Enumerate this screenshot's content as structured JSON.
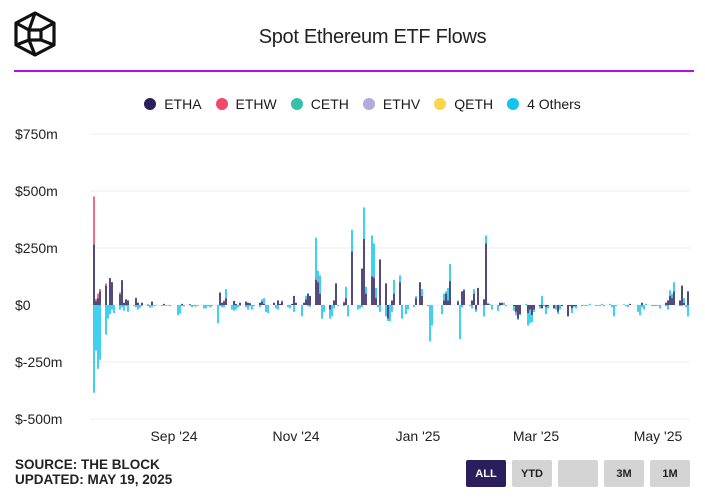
{
  "header": {
    "title": "Spot Ethereum ETF Flows",
    "logo_name": "The Block"
  },
  "legend": [
    {
      "label": "ETHA",
      "color": "#2a1f5c"
    },
    {
      "label": "ETHW",
      "color": "#f0476a"
    },
    {
      "label": "CETH",
      "color": "#36bfad"
    },
    {
      "label": "ETHV",
      "color": "#b4a9e0"
    },
    {
      "label": "QETH",
      "color": "#fbd54b"
    },
    {
      "label": "4 Others",
      "color": "#12c4ec"
    }
  ],
  "footer": {
    "source": "SOURCE: THE BLOCK",
    "updated": "UPDATED: MAY 19, 2025"
  },
  "range_buttons": [
    {
      "label": "ALL",
      "active": true
    },
    {
      "label": "YTD",
      "active": false
    },
    {
      "label": "",
      "active": false
    },
    {
      "label": "3M",
      "active": false
    },
    {
      "label": "1M",
      "active": false
    }
  ],
  "chart_data": {
    "type": "bar",
    "stacked": true,
    "title": "Spot Ethereum ETF Flows",
    "ylim": [
      -500,
      750
    ],
    "y_ticks": [
      {
        "value": 750,
        "label": "$750m"
      },
      {
        "value": 500,
        "label": "$500m"
      },
      {
        "value": 250,
        "label": "$250m"
      },
      {
        "value": 0,
        "label": "$0"
      },
      {
        "value": -250,
        "label": "$-250m"
      },
      {
        "value": -500,
        "label": "$-500m"
      }
    ],
    "x_ticks": [
      {
        "date": "2024-09-01",
        "label": "Sep '24"
      },
      {
        "date": "2024-11-01",
        "label": "Nov '24"
      },
      {
        "date": "2025-01-01",
        "label": "Jan '25"
      },
      {
        "date": "2025-03-01",
        "label": "Mar '25"
      },
      {
        "date": "2025-05-01",
        "label": "May '25"
      }
    ],
    "xlim": [
      "2024-07-21",
      "2025-05-17"
    ],
    "grid": true,
    "legend_position": "top",
    "units": "USD millions",
    "columns": [
      "date",
      "ETHA",
      "ETHW",
      "4 Others"
    ],
    "rows": [
      [
        "2024-07-23",
        266,
        210,
        -385
      ],
      [
        "2024-07-24",
        17,
        10,
        -200
      ],
      [
        "2024-07-25",
        30,
        20,
        -280
      ],
      [
        "2024-07-26",
        60,
        10,
        -240
      ],
      [
        "2024-07-29",
        85,
        10,
        -130
      ],
      [
        "2024-07-30",
        0,
        0,
        -60
      ],
      [
        "2024-07-31",
        118,
        0,
        -40
      ],
      [
        "2024-08-01",
        100,
        0,
        -20
      ],
      [
        "2024-08-02",
        0,
        0,
        -35
      ],
      [
        "2024-08-05",
        47,
        8,
        -20
      ],
      [
        "2024-08-06",
        109,
        0,
        -10
      ],
      [
        "2024-08-07",
        10,
        0,
        -25
      ],
      [
        "2024-08-08",
        25,
        0,
        -5
      ],
      [
        "2024-08-09",
        20,
        0,
        -30
      ],
      [
        "2024-08-12",
        0,
        0,
        -5
      ],
      [
        "2024-08-13",
        30,
        3,
        -10
      ],
      [
        "2024-08-14",
        10,
        0,
        -20
      ],
      [
        "2024-08-15",
        0,
        0,
        -12
      ],
      [
        "2024-08-16",
        10,
        0,
        -5
      ],
      [
        "2024-08-19",
        2,
        0,
        -5
      ],
      [
        "2024-08-20",
        0,
        0,
        -12
      ],
      [
        "2024-08-21",
        15,
        0,
        -8
      ],
      [
        "2024-08-22",
        0,
        0,
        -4
      ],
      [
        "2024-08-23",
        0,
        0,
        -2
      ],
      [
        "2024-08-26",
        0,
        0,
        -5
      ],
      [
        "2024-08-27",
        5,
        0,
        -3
      ],
      [
        "2024-08-28",
        0,
        0,
        -3
      ],
      [
        "2024-08-29",
        0,
        0,
        -2
      ],
      [
        "2024-08-30",
        0,
        0,
        -5
      ],
      [
        "2024-09-03",
        0,
        0,
        -45
      ],
      [
        "2024-09-04",
        0,
        0,
        -38
      ],
      [
        "2024-09-05",
        5,
        0,
        -5
      ],
      [
        "2024-09-06",
        0,
        0,
        -6
      ],
      [
        "2024-09-09",
        3,
        0,
        -3
      ],
      [
        "2024-09-10",
        0,
        0,
        -10
      ],
      [
        "2024-09-11",
        0,
        0,
        -5
      ],
      [
        "2024-09-12",
        0,
        0,
        -7
      ],
      [
        "2024-09-13",
        0,
        0,
        -3
      ],
      [
        "2024-09-16",
        0,
        0,
        -15
      ],
      [
        "2024-09-17",
        0,
        0,
        -15
      ],
      [
        "2024-09-18",
        0,
        0,
        -5
      ],
      [
        "2024-09-19",
        0,
        0,
        -10
      ],
      [
        "2024-09-20",
        0,
        0,
        -5
      ],
      [
        "2024-09-23",
        0,
        0,
        -80
      ],
      [
        "2024-09-24",
        55,
        0,
        -5
      ],
      [
        "2024-09-25",
        10,
        0,
        -10
      ],
      [
        "2024-09-26",
        15,
        5,
        -10
      ],
      [
        "2024-09-27",
        30,
        0,
        40
      ],
      [
        "2024-09-30",
        0,
        0,
        -20
      ],
      [
        "2024-10-01",
        18,
        0,
        -25
      ],
      [
        "2024-10-02",
        5,
        0,
        -20
      ],
      [
        "2024-10-03",
        0,
        0,
        -10
      ],
      [
        "2024-10-04",
        10,
        0,
        -5
      ],
      [
        "2024-10-07",
        15,
        0,
        -10
      ],
      [
        "2024-10-08",
        10,
        0,
        -20
      ],
      [
        "2024-10-09",
        8,
        0,
        -6
      ],
      [
        "2024-10-10",
        0,
        0,
        -20
      ],
      [
        "2024-10-11",
        0,
        0,
        -5
      ],
      [
        "2024-10-14",
        10,
        0,
        -10
      ],
      [
        "2024-10-15",
        15,
        0,
        10
      ],
      [
        "2024-10-16",
        5,
        0,
        25
      ],
      [
        "2024-10-17",
        0,
        0,
        -30
      ],
      [
        "2024-10-18",
        0,
        0,
        -35
      ],
      [
        "2024-10-21",
        10,
        0,
        0
      ],
      [
        "2024-10-22",
        0,
        0,
        -15
      ],
      [
        "2024-10-23",
        20,
        0,
        -20
      ],
      [
        "2024-10-24",
        5,
        0,
        0
      ],
      [
        "2024-10-25",
        15,
        0,
        5
      ],
      [
        "2024-10-28",
        0,
        0,
        -10
      ],
      [
        "2024-10-29",
        0,
        0,
        -15
      ],
      [
        "2024-10-30",
        5,
        0,
        0
      ],
      [
        "2024-10-31",
        40,
        0,
        -30
      ],
      [
        "2024-11-01",
        10,
        0,
        0
      ],
      [
        "2024-11-04",
        0,
        0,
        -50
      ],
      [
        "2024-11-05",
        10,
        0,
        0
      ],
      [
        "2024-11-06",
        25,
        0,
        15
      ],
      [
        "2024-11-07",
        50,
        0,
        -5
      ],
      [
        "2024-11-08",
        40,
        0,
        -10
      ],
      [
        "2024-11-11",
        110,
        10,
        175
      ],
      [
        "2024-11-12",
        100,
        5,
        45
      ],
      [
        "2024-11-13",
        50,
        0,
        80
      ],
      [
        "2024-11-14",
        0,
        0,
        -60
      ],
      [
        "2024-11-15",
        0,
        0,
        -30
      ],
      [
        "2024-11-18",
        -20,
        0,
        -40
      ],
      [
        "2024-11-19",
        0,
        0,
        -50
      ],
      [
        "2024-11-20",
        20,
        0,
        -15
      ],
      [
        "2024-11-21",
        95,
        0,
        0
      ],
      [
        "2024-11-22",
        0,
        0,
        -5
      ],
      [
        "2024-11-25",
        10,
        5,
        -5
      ],
      [
        "2024-11-26",
        30,
        0,
        50
      ],
      [
        "2024-11-27",
        0,
        0,
        -50
      ],
      [
        "2024-11-29",
        235,
        0,
        95
      ],
      [
        "2024-12-02",
        0,
        0,
        -20
      ],
      [
        "2024-12-03",
        0,
        0,
        -15
      ],
      [
        "2024-12-04",
        160,
        0,
        -10
      ],
      [
        "2024-12-05",
        290,
        0,
        138
      ],
      [
        "2024-12-06",
        50,
        0,
        30
      ],
      [
        "2024-12-09",
        125,
        0,
        180
      ],
      [
        "2024-12-10",
        120,
        5,
        145
      ],
      [
        "2024-12-11",
        30,
        5,
        40
      ],
      [
        "2024-12-12",
        0,
        0,
        -10
      ],
      [
        "2024-12-13",
        200,
        0,
        -30
      ],
      [
        "2024-12-16",
        95,
        0,
        -50
      ],
      [
        "2024-12-17",
        -60,
        0,
        -10
      ],
      [
        "2024-12-18",
        0,
        0,
        -70
      ],
      [
        "2024-12-19",
        20,
        0,
        -30
      ],
      [
        "2024-12-20",
        50,
        0,
        60
      ],
      [
        "2024-12-23",
        100,
        0,
        30
      ],
      [
        "2024-12-24",
        0,
        0,
        -60
      ],
      [
        "2024-12-26",
        0,
        0,
        -40
      ],
      [
        "2024-12-27",
        0,
        0,
        -20
      ],
      [
        "2024-12-30",
        0,
        0,
        -10
      ],
      [
        "2024-12-31",
        30,
        0,
        10
      ],
      [
        "2025-01-02",
        100,
        0,
        0
      ],
      [
        "2025-01-03",
        40,
        0,
        30
      ],
      [
        "2025-01-06",
        0,
        0,
        -5
      ],
      [
        "2025-01-07",
        0,
        0,
        -160
      ],
      [
        "2025-01-08",
        0,
        0,
        -90
      ],
      [
        "2025-01-13",
        0,
        0,
        -40
      ],
      [
        "2025-01-14",
        20,
        0,
        30
      ],
      [
        "2025-01-15",
        50,
        0,
        10
      ],
      [
        "2025-01-16",
        20,
        0,
        55
      ],
      [
        "2025-01-17",
        105,
        0,
        75
      ],
      [
        "2025-01-21",
        15,
        0,
        5
      ],
      [
        "2025-01-22",
        0,
        0,
        -150
      ],
      [
        "2025-01-23",
        60,
        0,
        -10
      ],
      [
        "2025-01-24",
        65,
        0,
        5
      ],
      [
        "2025-01-27",
        0,
        0,
        -5
      ],
      [
        "2025-01-28",
        20,
        0,
        -15
      ],
      [
        "2025-01-29",
        50,
        0,
        20
      ],
      [
        "2025-01-30",
        -20,
        0,
        -10
      ],
      [
        "2025-01-31",
        75,
        0,
        0
      ],
      [
        "2025-02-03",
        25,
        0,
        -50
      ],
      [
        "2025-02-04",
        270,
        0,
        35
      ],
      [
        "2025-02-05",
        5,
        0,
        5
      ],
      [
        "2025-02-06",
        0,
        0,
        5
      ],
      [
        "2025-02-07",
        0,
        0,
        -20
      ],
      [
        "2025-02-10",
        0,
        0,
        -25
      ],
      [
        "2025-02-11",
        10,
        0,
        -5
      ],
      [
        "2025-02-12",
        10,
        0,
        0
      ],
      [
        "2025-02-13",
        0,
        0,
        10
      ],
      [
        "2025-02-14",
        0,
        0,
        -5
      ],
      [
        "2025-02-18",
        -5,
        0,
        -20
      ],
      [
        "2025-02-19",
        -30,
        -5,
        -10
      ],
      [
        "2025-02-20",
        -60,
        0,
        -5
      ],
      [
        "2025-02-21",
        -40,
        0,
        -5
      ],
      [
        "2025-02-24",
        0,
        0,
        5
      ],
      [
        "2025-02-25",
        -35,
        -5,
        -50
      ],
      [
        "2025-02-26",
        -20,
        0,
        -60
      ],
      [
        "2025-02-27",
        -45,
        0,
        -30
      ],
      [
        "2025-02-28",
        -20,
        0,
        -10
      ],
      [
        "2025-03-03",
        -5,
        0,
        -10
      ],
      [
        "2025-03-04",
        -15,
        0,
        40
      ],
      [
        "2025-03-05",
        0,
        0,
        -5
      ],
      [
        "2025-03-06",
        -10,
        0,
        -30
      ],
      [
        "2025-03-07",
        -5,
        0,
        -10
      ],
      [
        "2025-03-10",
        -15,
        0,
        0
      ],
      [
        "2025-03-11",
        0,
        0,
        -20
      ],
      [
        "2025-03-12",
        -30,
        0,
        -10
      ],
      [
        "2025-03-13",
        0,
        0,
        -20
      ],
      [
        "2025-03-14",
        -5,
        0,
        0
      ],
      [
        "2025-03-17",
        -50,
        0,
        0
      ],
      [
        "2025-03-18",
        -5,
        0,
        0
      ],
      [
        "2025-03-19",
        -15,
        0,
        -20
      ],
      [
        "2025-03-20",
        -5,
        0,
        -5
      ],
      [
        "2025-03-21",
        -5,
        0,
        -10
      ],
      [
        "2025-03-24",
        0,
        0,
        -5
      ],
      [
        "2025-03-25",
        0,
        0,
        -3
      ],
      [
        "2025-03-26",
        0,
        0,
        -5
      ],
      [
        "2025-03-27",
        0,
        0,
        -3
      ],
      [
        "2025-03-28",
        0,
        0,
        5
      ],
      [
        "2025-03-31",
        0,
        0,
        -5
      ],
      [
        "2025-04-01",
        0,
        0,
        -3
      ],
      [
        "2025-04-02",
        0,
        0,
        -5
      ],
      [
        "2025-04-03",
        0,
        0,
        5
      ],
      [
        "2025-04-04",
        0,
        0,
        -5
      ],
      [
        "2025-04-07",
        0,
        0,
        5
      ],
      [
        "2025-04-08",
        0,
        0,
        -10
      ],
      [
        "2025-04-09",
        0,
        0,
        -50
      ],
      [
        "2025-04-10",
        0,
        0,
        -5
      ],
      [
        "2025-04-14",
        0,
        0,
        3
      ],
      [
        "2025-04-15",
        0,
        0,
        -5
      ],
      [
        "2025-04-16",
        0,
        0,
        -10
      ],
      [
        "2025-04-17",
        5,
        0,
        0
      ],
      [
        "2025-04-21",
        0,
        0,
        -30
      ],
      [
        "2025-04-22",
        0,
        0,
        -45
      ],
      [
        "2025-04-23",
        10,
        0,
        -10
      ],
      [
        "2025-04-24",
        0,
        0,
        -20
      ],
      [
        "2025-04-25",
        0,
        0,
        5
      ],
      [
        "2025-04-28",
        0,
        0,
        -5
      ],
      [
        "2025-04-29",
        0,
        0,
        -5
      ],
      [
        "2025-04-30",
        0,
        0,
        -5
      ],
      [
        "2025-05-01",
        0,
        0,
        -3
      ],
      [
        "2025-05-02",
        0,
        0,
        -15
      ],
      [
        "2025-05-05",
        10,
        0,
        -5
      ],
      [
        "2025-05-06",
        20,
        0,
        -20
      ],
      [
        "2025-05-07",
        40,
        5,
        20
      ],
      [
        "2025-05-08",
        30,
        5,
        15
      ],
      [
        "2025-05-09",
        60,
        0,
        40
      ],
      [
        "2025-05-12",
        20,
        0,
        -5
      ],
      [
        "2025-05-13",
        85,
        0,
        -5
      ],
      [
        "2025-05-14",
        10,
        0,
        20
      ],
      [
        "2025-05-15",
        0,
        0,
        -10
      ],
      [
        "2025-05-16",
        60,
        0,
        -50
      ]
    ]
  }
}
